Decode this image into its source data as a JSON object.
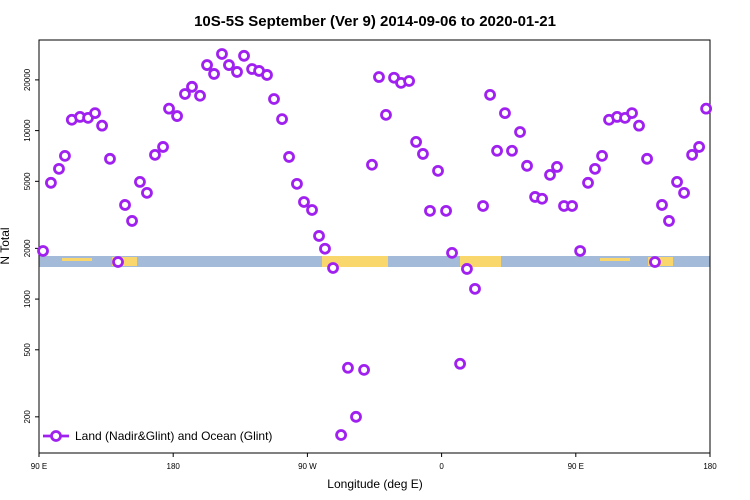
{
  "chart_data": {
    "type": "scatter",
    "title": "10S-5S September (Ver 9)   2014-09-06 to 2020-01-21",
    "x_label": "Longitude (deg E)",
    "y_label": "N Total",
    "log_y": true,
    "legend_position": "bottom-left",
    "xlim": [
      90,
      540
    ],
    "ylim": [
      122,
      34500
    ],
    "xticks": [
      {
        "value": 90,
        "label": "90 E"
      },
      {
        "value": 180,
        "label": "180"
      },
      {
        "value": 270,
        "label": "90 W"
      },
      {
        "value": 360,
        "label": "0"
      },
      {
        "value": 450,
        "label": "90 E"
      },
      {
        "value": 540,
        "label": "180"
      }
    ],
    "yticks": [
      200,
      500,
      1000,
      2000,
      5000,
      10000,
      20000
    ],
    "series": [
      {
        "name": "Land (Nadir&Glint) and Ocean (Glint)",
        "color": "#a020f0",
        "x": [
          92.7,
          98,
          103.4,
          107.4,
          112,
          117.5,
          122.9,
          127.6,
          132.3,
          137.6,
          143,
          147.7,
          152.4,
          157.7,
          162.4,
          167.8,
          173.2,
          177.2,
          182.6,
          187.9,
          192.6,
          198,
          202.7,
          207.4,
          212.7,
          217.4,
          222.8,
          227.5,
          232.9,
          237.6,
          242.9,
          247.6,
          253,
          257.7,
          263,
          267.7,
          273.1,
          277.8,
          281.8,
          287.2,
          292.6,
          297.2,
          302.6,
          308,
          313.3,
          318,
          322.7,
          328.1,
          332.8,
          338.2,
          342.9,
          347.5,
          352.2,
          357.6,
          363,
          367,
          372.4,
          377,
          382.4,
          387.8,
          392.5,
          397.2,
          402.5,
          407.2,
          412.6,
          417.3,
          422.7,
          427.4,
          432.7,
          437.4,
          442.1,
          447.5,
          452.9,
          458.2,
          462.9,
          467.6,
          472.3,
          477.7,
          483,
          487.7,
          492.4,
          497.8,
          503.1,
          507.8,
          512.5,
          517.9,
          522.6,
          528,
          532.7,
          537.4
        ],
        "values": [
          1930,
          4900,
          5930,
          7080,
          11600,
          12060,
          11900,
          12700,
          10700,
          6800,
          1660,
          3620,
          2910,
          4960,
          4270,
          7180,
          8000,
          13500,
          12200,
          16500,
          18200,
          16100,
          24500,
          21700,
          28500,
          24500,
          22300,
          27800,
          23200,
          22600,
          21400,
          15400,
          11700,
          6980,
          4830,
          3770,
          3380,
          2370,
          1990,
          1530,
          156,
          391,
          200,
          380,
          6270,
          20800,
          12400,
          20600,
          19200,
          19700,
          8570,
          7270,
          3340,
          5770,
          3340,
          1880,
          413,
          1510,
          1150,
          3570,
          16300,
          7590,
          12700,
          7590,
          9810,
          6180,
          4040,
          3940,
          5460,
          6090,
          3570,
          3570,
          1930,
          4900,
          5930,
          7080,
          11600,
          12060,
          11900,
          12700,
          10700,
          6800,
          1660,
          3620,
          2910,
          4960,
          4270,
          7180,
          8000,
          13500
        ]
      }
    ]
  }
}
